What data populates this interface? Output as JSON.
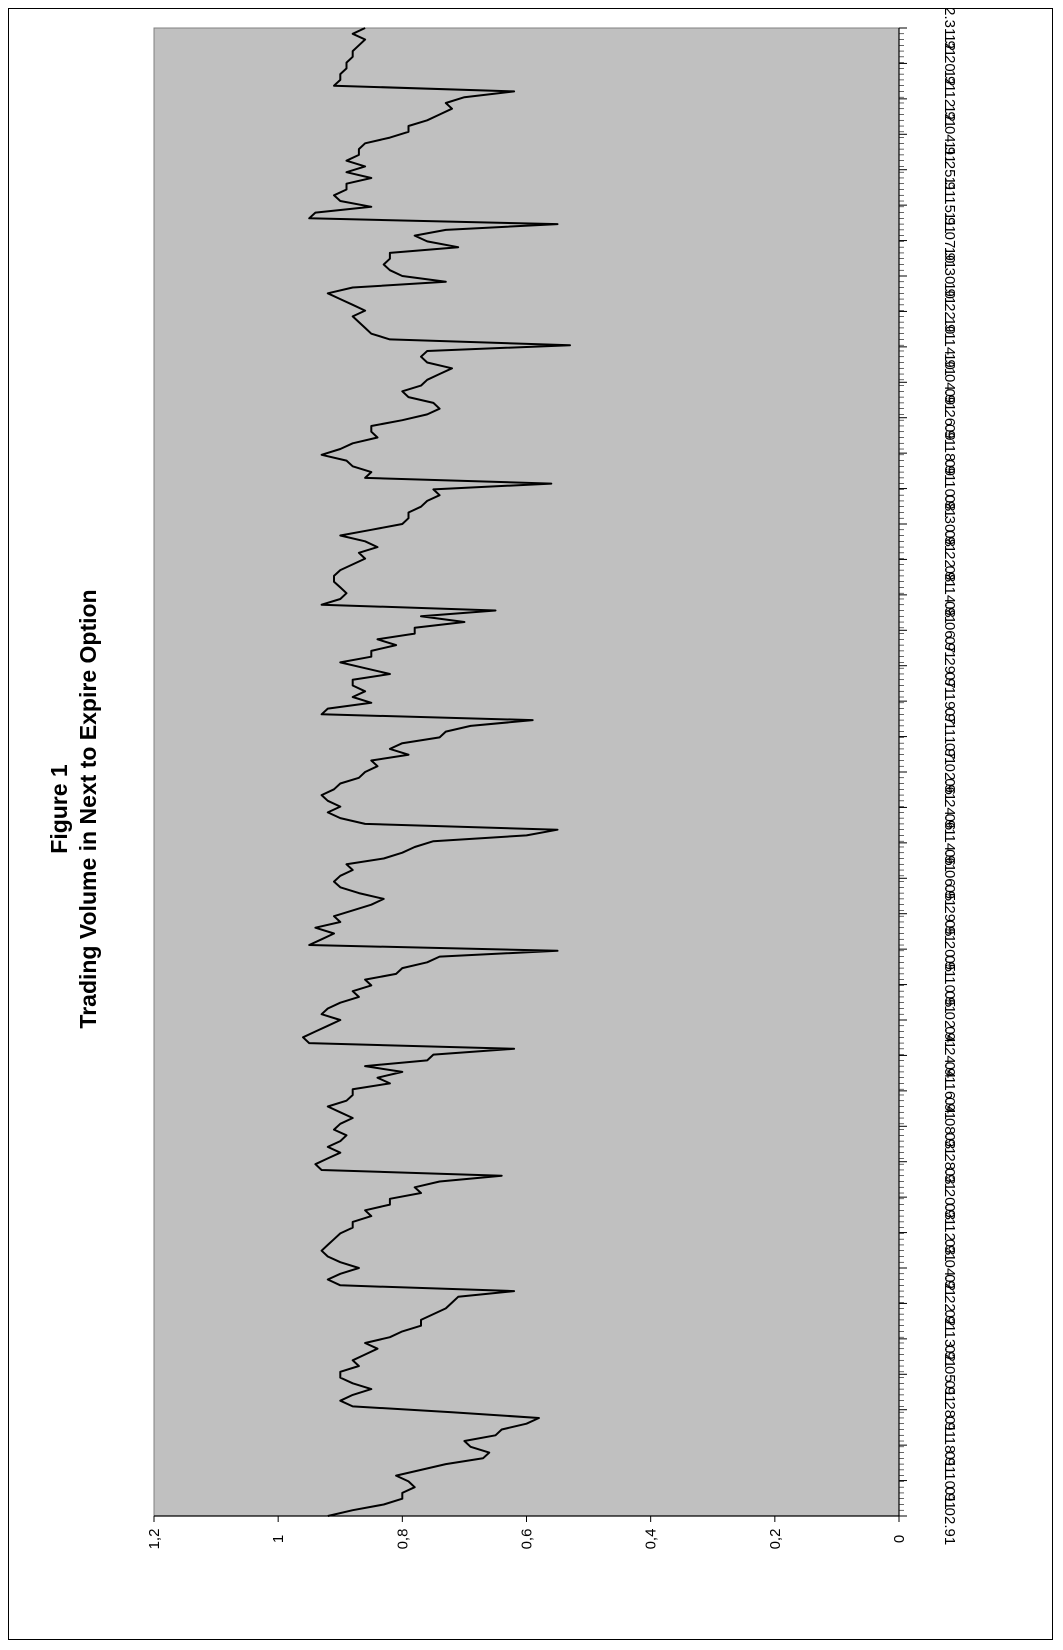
{
  "chart_data": {
    "type": "line",
    "title": "Figure 1",
    "subtitle": "Trading Volume in Next to Expire Option",
    "xlabel": "",
    "ylabel": "",
    "ylim": [
      0,
      1.2
    ],
    "y_ticks": [
      "0",
      "0,2",
      "0,4",
      "0,6",
      "0,8",
      "1",
      "1,2"
    ],
    "x_tick_labels": [
      "01.02.91",
      "01.10.91",
      "01.18.91",
      "01.28.91",
      "02.05.91",
      "02.13.91",
      "02.22.91",
      "03.04.91",
      "03.12.91",
      "03.20.91",
      "03.28.91",
      "04.08.91",
      "04.16.91",
      "04.24.91",
      "05.02.91",
      "05.10.91",
      "05.20.91",
      "05.29.91",
      "06.06.91",
      "06.14.91",
      "06.24.91",
      "07.02.91",
      "07.11.91",
      "07.19.91",
      "07.29.91",
      "08.06.91",
      "08.14.91",
      "08.22.91",
      "08.30.91",
      "09.10.91",
      "09.18.91",
      "09.26.91",
      "10.04.91",
      "10.14.91",
      "10.22.91",
      "10.30.91",
      "11.07.91",
      "11.15.91",
      "11.25.91",
      "12.04.91",
      "12.12.91",
      "12.20.91",
      "12.31.91"
    ],
    "orientation": "rotated 90° clockwise",
    "plot_background": "#c0c0c0",
    "line_color": "#000000",
    "grid": false,
    "series": [
      {
        "values": [
          0.92,
          0.88,
          0.83,
          0.8,
          0.8,
          0.78,
          0.79,
          0.81,
          0.77,
          0.73,
          0.67,
          0.66,
          0.69,
          0.7,
          0.65,
          0.64,
          0.6,
          0.58,
          0.72,
          0.88,
          0.9,
          0.88,
          0.85,
          0.88,
          0.9,
          0.9,
          0.87,
          0.88,
          0.86,
          0.84,
          0.86,
          0.82,
          0.8,
          0.77,
          0.77,
          0.75,
          0.73,
          0.72,
          0.71,
          0.62,
          0.9,
          0.92,
          0.9,
          0.87,
          0.9,
          0.92,
          0.93,
          0.92,
          0.91,
          0.9,
          0.88,
          0.88,
          0.85,
          0.86,
          0.82,
          0.82,
          0.77,
          0.78,
          0.74,
          0.64,
          0.93,
          0.94,
          0.92,
          0.9,
          0.92,
          0.9,
          0.89,
          0.91,
          0.9,
          0.88,
          0.9,
          0.92,
          0.89,
          0.88,
          0.88,
          0.82,
          0.84,
          0.8,
          0.86,
          0.76,
          0.75,
          0.62,
          0.95,
          0.96,
          0.94,
          0.92,
          0.9,
          0.93,
          0.92,
          0.9,
          0.87,
          0.88,
          0.85,
          0.86,
          0.81,
          0.8,
          0.76,
          0.74,
          0.55,
          0.95,
          0.93,
          0.91,
          0.94,
          0.9,
          0.91,
          0.88,
          0.85,
          0.83,
          0.87,
          0.9,
          0.91,
          0.9,
          0.88,
          0.89,
          0.83,
          0.8,
          0.78,
          0.75,
          0.6,
          0.55,
          0.86,
          0.9,
          0.92,
          0.9,
          0.92,
          0.93,
          0.91,
          0.9,
          0.87,
          0.86,
          0.84,
          0.85,
          0.79,
          0.82,
          0.8,
          0.74,
          0.73,
          0.69,
          0.59,
          0.93,
          0.92,
          0.85,
          0.88,
          0.86,
          0.88,
          0.88,
          0.82,
          0.86,
          0.9,
          0.85,
          0.85,
          0.81,
          0.84,
          0.78,
          0.78,
          0.7,
          0.77,
          0.65,
          0.93,
          0.9,
          0.89,
          0.9,
          0.91,
          0.91,
          0.9,
          0.88,
          0.86,
          0.87,
          0.84,
          0.86,
          0.9,
          0.85,
          0.8,
          0.79,
          0.79,
          0.77,
          0.76,
          0.74,
          0.75,
          0.56,
          0.86,
          0.85,
          0.88,
          0.89,
          0.93,
          0.9,
          0.88,
          0.84,
          0.85,
          0.85,
          0.8,
          0.76,
          0.74,
          0.75,
          0.79,
          0.8,
          0.77,
          0.76,
          0.74,
          0.72,
          0.76,
          0.77,
          0.76,
          0.53,
          0.82,
          0.85,
          0.86,
          0.87,
          0.88,
          0.86,
          0.88,
          0.9,
          0.92,
          0.88,
          0.73,
          0.8,
          0.82,
          0.83,
          0.82,
          0.82,
          0.71,
          0.76,
          0.78,
          0.73,
          0.55,
          0.95,
          0.94,
          0.85,
          0.9,
          0.91,
          0.89,
          0.89,
          0.85,
          0.89,
          0.86,
          0.89,
          0.87,
          0.87,
          0.86,
          0.82,
          0.79,
          0.79,
          0.76,
          0.74,
          0.72,
          0.73,
          0.7,
          0.62,
          0.91,
          0.9,
          0.9,
          0.89,
          0.89,
          0.88,
          0.88,
          0.87,
          0.86,
          0.88,
          0.86
        ]
      }
    ]
  }
}
